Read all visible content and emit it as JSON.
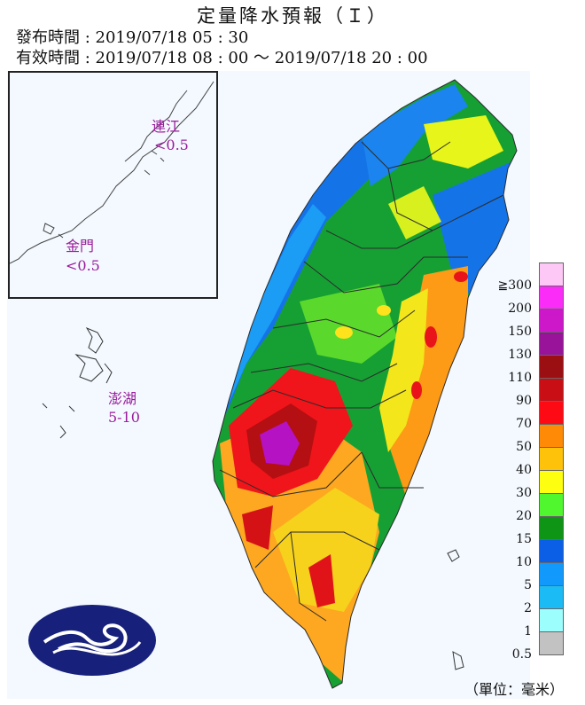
{
  "header": {
    "title": "定量降水預報（Ｉ）",
    "issue_line": "發布時間 : 2019/07/18 05 : 30",
    "valid_line": "有效時間 : 2019/07/18 08 : 00 ～ 2019/07/18 20 : 00"
  },
  "islands": [
    {
      "name": "連江",
      "value": "<0.5"
    },
    {
      "name": "金門",
      "value": "<0.5"
    },
    {
      "name": "澎湖",
      "value": "5-10"
    }
  ],
  "legend": {
    "unit": "（單位：毫米）",
    "levels": [
      {
        "label": "≧300",
        "color": "#fdc8f5"
      },
      {
        "label": "300",
        "color": "#fb2bf8"
      },
      {
        "label": "200",
        "color": "#cc18c9"
      },
      {
        "label": "150",
        "color": "#99139a"
      },
      {
        "label": "130",
        "color": "#9b0f12"
      },
      {
        "label": "110",
        "color": "#c90e16"
      },
      {
        "label": "90",
        "color": "#fe0a14"
      },
      {
        "label": "70",
        "color": "#fe8a05"
      },
      {
        "label": "50",
        "color": "#fec20a"
      },
      {
        "label": "40",
        "color": "#fefe10"
      },
      {
        "label": "30",
        "color": "#50f72e"
      },
      {
        "label": "20",
        "color": "#0f9515"
      },
      {
        "label": "15",
        "color": "#0b5fe6"
      },
      {
        "label": "10",
        "color": "#119afc"
      },
      {
        "label": "5",
        "color": "#1bbbf6"
      },
      {
        "label": "2",
        "color": "#9dfffd"
      },
      {
        "label": "1",
        "color": "#c2c2c2"
      }
    ],
    "tick_labels": [
      "≧300",
      "200",
      "150",
      "130",
      "110",
      "90",
      "70",
      "50",
      "40",
      "30",
      "20",
      "15",
      "10",
      "5",
      "2",
      "1",
      "0.5"
    ]
  },
  "colors": {
    "map_background": "#f3f9ff",
    "label_color": "#9a1b9a",
    "border_color": "#333333"
  }
}
